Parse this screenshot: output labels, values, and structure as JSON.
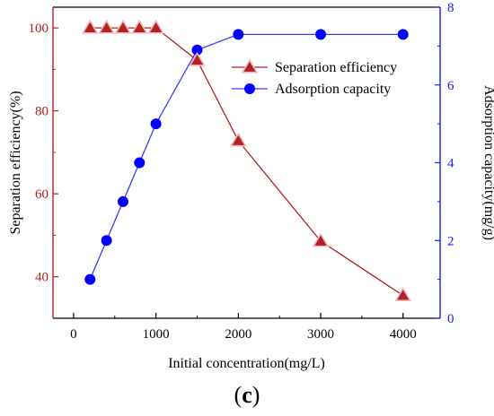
{
  "chart_data": {
    "type": "line",
    "xlabel": "Initial concentration(mg/L)",
    "ylabel_left": "Separation efficiency(%)",
    "ylabel_right": "Adsorption capacity(mg/g)",
    "panel_label_open": "(",
    "panel_label_letter": "c",
    "panel_label_close": ")",
    "xlim": [
      -250,
      4450
    ],
    "ylim_left": [
      30,
      105
    ],
    "ylim_right": [
      0,
      8
    ],
    "x_ticks": [
      0,
      1000,
      2000,
      3000,
      4000
    ],
    "left_ticks": [
      40,
      60,
      80,
      100
    ],
    "right_ticks": [
      0,
      2,
      4,
      6,
      8
    ],
    "legend_position": "top-right",
    "colors": {
      "left_axis": "#b22222",
      "right_axis": "#1a1aff",
      "efficiency_line": "#b22222",
      "efficiency_marker": "#b22222",
      "efficiency_marker_edge": "#f4b6c2",
      "capacity_line": "#3b3bff",
      "capacity_marker": "#0000ff"
    },
    "series": [
      {
        "name": "Separation efficiency",
        "axis": "left",
        "marker": "triangle",
        "x": [
          200,
          400,
          600,
          800,
          1000,
          1500,
          2000,
          3000,
          4000
        ],
        "y": [
          100,
          100,
          100,
          100,
          100,
          92.2,
          72.8,
          48.6,
          35.5
        ]
      },
      {
        "name": "Adsorption capacity",
        "axis": "right",
        "marker": "circle",
        "x": [
          200,
          400,
          600,
          800,
          1000,
          1500,
          2000,
          3000,
          4000
        ],
        "y": [
          1.0,
          2.0,
          3.0,
          4.0,
          5.0,
          6.9,
          7.3,
          7.3,
          7.3
        ]
      }
    ]
  }
}
